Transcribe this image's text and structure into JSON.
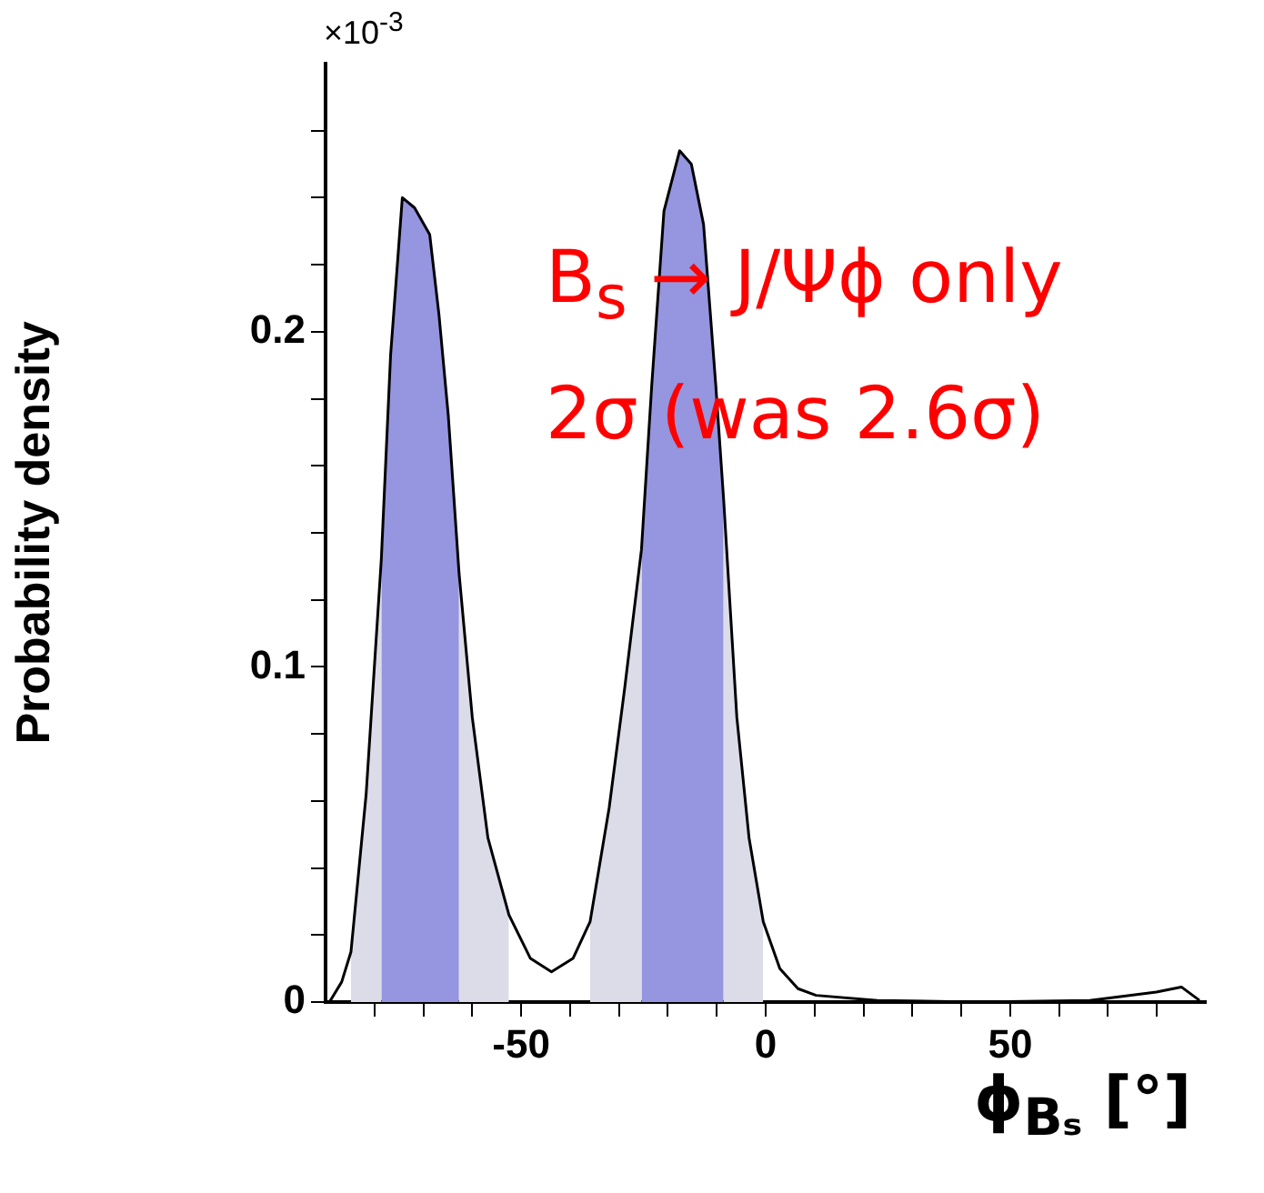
{
  "chart_data": {
    "type": "area",
    "xlabel": "ϕ$_{Bₛ}$ [°]",
    "ylabel": "Probability density",
    "annotations": [
      "×10$^{-3}$",
      "B$_{s}$ → J/Ψϕ only",
      "2σ (was 2.6σ)"
    ],
    "xlim": [
      -90,
      90
    ],
    "ylim": [
      0,
      0.28
    ],
    "xticks": [
      {
        "value": -80,
        "label": null
      },
      {
        "value": -70,
        "label": null
      },
      {
        "value": -60,
        "label": null
      },
      -50,
      {
        "value": -40,
        "label": null
      },
      {
        "value": -30,
        "label": null
      },
      {
        "value": -20,
        "label": null
      },
      {
        "value": -10,
        "label": null
      },
      0,
      {
        "value": 10,
        "label": null
      },
      {
        "value": 20,
        "label": null
      },
      {
        "value": 30,
        "label": null
      },
      {
        "value": 40,
        "label": null
      },
      50,
      {
        "value": 60,
        "label": null
      },
      {
        "value": 70,
        "label": null
      },
      {
        "value": 80,
        "label": null
      }
    ],
    "yticks": [
      0,
      {
        "value": 0.02,
        "label": null
      },
      {
        "value": 0.04,
        "label": null
      },
      {
        "value": 0.06,
        "label": null
      },
      {
        "value": 0.08,
        "label": null
      },
      0.1,
      {
        "value": 0.12,
        "label": null
      },
      {
        "value": 0.14,
        "label": null
      },
      {
        "value": 0.16,
        "label": null
      },
      {
        "value": 0.18,
        "label": null
      },
      0.2,
      {
        "value": 0.22,
        "label": null
      },
      {
        "value": 0.24,
        "label": null
      },
      {
        "value": 0.26,
        "label": null
      }
    ],
    "grid": false,
    "legend": false,
    "series": [
      {
        "color": "#dcdce8",
        "x": [
          -84.8,
          -81.7,
          -78.6
        ],
        "values": [
          0.015,
          0.062,
          0.132
        ]
      },
      {
        "color": "#dcdce8",
        "x": [
          -62.7,
          -60.0,
          -56.8,
          -52.5
        ],
        "values": [
          0.128,
          0.085,
          0.049,
          0.026
        ]
      },
      {
        "color": "#dcdce8",
        "x": [
          -35.9,
          -32.0,
          -28.8,
          -25.4
        ],
        "values": [
          0.024,
          0.058,
          0.094,
          0.135
        ]
      },
      {
        "color": "#dcdce8",
        "x": [
          -8.6,
          -5.9,
          -3.4,
          -0.5
        ],
        "values": [
          0.15,
          0.085,
          0.049,
          0.024
        ]
      },
      {
        "color": "#9595e0",
        "x": [
          -78.6,
          -76.7,
          -74.3,
          -71.8,
          -68.7,
          -66.8,
          -64.9,
          -62.7
        ],
        "values": [
          0.132,
          0.193,
          0.24,
          0.237,
          0.229,
          0.205,
          0.175,
          0.128
        ]
      },
      {
        "color": "#9595e0",
        "x": [
          -25.4,
          -23.3,
          -20.8,
          -17.6,
          -15.2,
          -12.7,
          -10.2,
          -8.6
        ],
        "values": [
          0.135,
          0.184,
          0.236,
          0.254,
          0.25,
          0.232,
          0.184,
          0.15
        ]
      },
      {
        "type": "line",
        "color": "#000000",
        "x": [
          -89.2,
          -86.7,
          -84.8,
          -81.7,
          -78.6,
          -76.7,
          -74.3,
          -71.8,
          -68.7,
          -66.8,
          -64.9,
          -62.7,
          -60.0,
          -56.8,
          -52.5,
          -48.1,
          -43.8,
          -39.4,
          -35.9,
          -32.0,
          -28.8,
          -25.4,
          -23.3,
          -20.8,
          -17.6,
          -15.2,
          -12.7,
          -10.2,
          -8.6,
          -5.9,
          -3.4,
          -0.5,
          2.9,
          6.6,
          10.3,
          22.8,
          43,
          66.3,
          79.9,
          85,
          88.7
        ],
        "values": [
          0,
          0.006,
          0.015,
          0.062,
          0.132,
          0.193,
          0.24,
          0.237,
          0.229,
          0.205,
          0.175,
          0.128,
          0.085,
          0.049,
          0.026,
          0.013,
          0.009,
          0.013,
          0.024,
          0.058,
          0.094,
          0.135,
          0.184,
          0.236,
          0.254,
          0.25,
          0.232,
          0.184,
          0.15,
          0.085,
          0.049,
          0.024,
          0.01,
          0.004,
          0.002,
          0.0005,
          0,
          0.0005,
          0.003,
          0.0045,
          0.0005
        ]
      }
    ]
  }
}
